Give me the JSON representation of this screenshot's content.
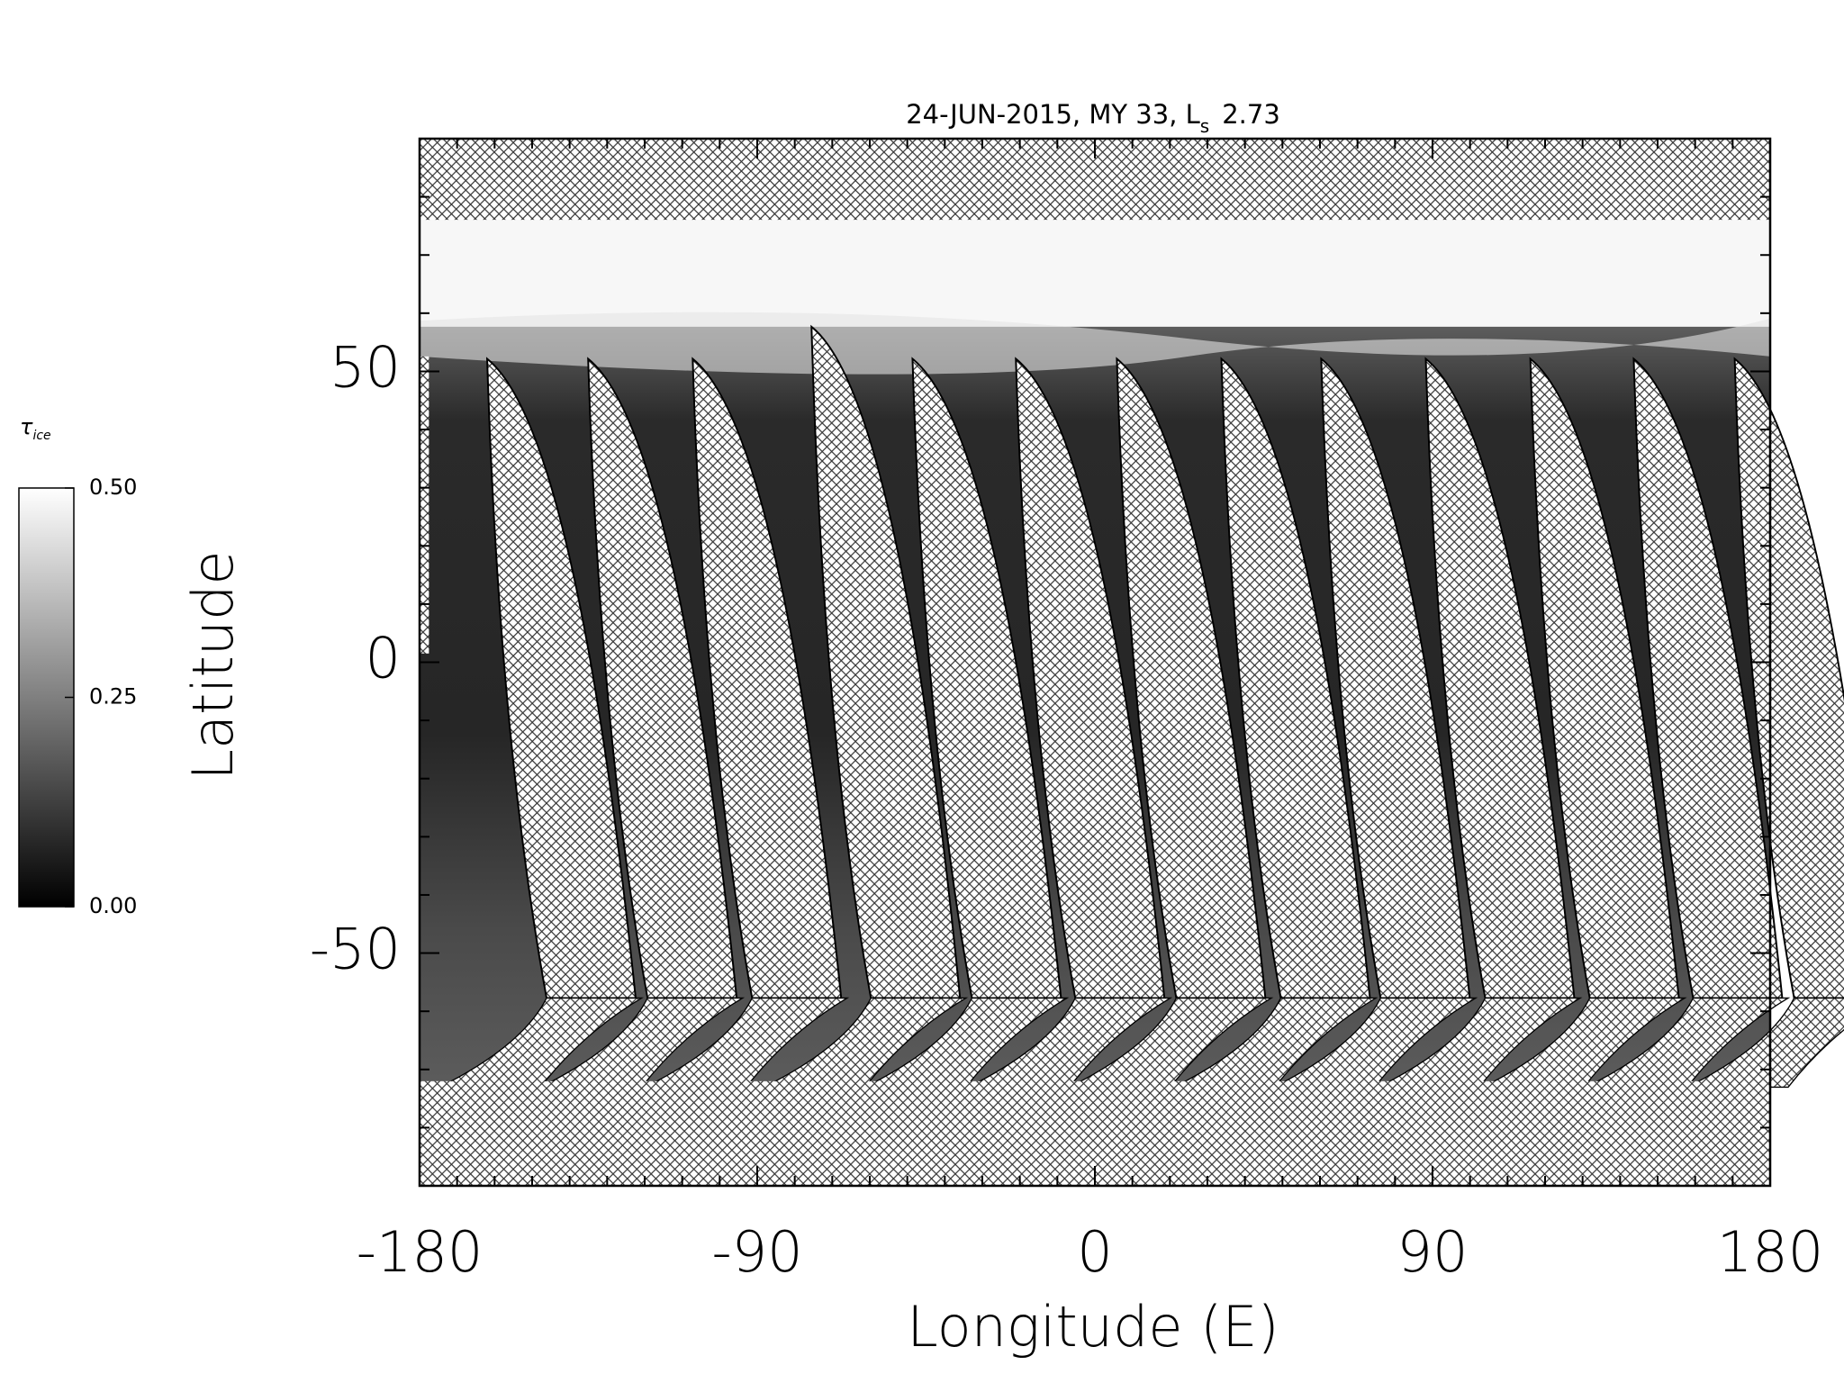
{
  "chart_data": {
    "type": "map",
    "title": "24-JUN-2015, MY 33,  L",
    "title_subscript": "s",
    "title_suffix": 2.73,
    "xlabel": "Longitude (E)",
    "ylabel": "Latitude",
    "xlim": [
      -180,
      180
    ],
    "xticks": [
      -180,
      -90,
      0,
      90,
      180
    ],
    "xminorticks": [
      -170,
      -160,
      -150,
      -140,
      -130,
      -120,
      -110,
      -100,
      -80,
      -70,
      -60,
      -50,
      -40,
      -30,
      -20,
      -10,
      10,
      20,
      30,
      40,
      50,
      60,
      70,
      80,
      100,
      110,
      120,
      130,
      140,
      150,
      160,
      170
    ],
    "ylim": [
      -90,
      90
    ],
    "yticks": [
      -50,
      0,
      50
    ],
    "yminorticks": [
      -80,
      -70,
      -60,
      -40,
      -30,
      -20,
      -10,
      10,
      20,
      30,
      40,
      60,
      70,
      80
    ],
    "colorbar": {
      "label": "τ",
      "label_subscript": "ice",
      "lim": [
        0,
        0.5
      ],
      "ticks": [
        {
          "value": 0,
          "label": "0.00"
        },
        {
          "value": 0.25,
          "label": "0.25"
        },
        {
          "value": 0.5,
          "label": "0.50"
        }
      ],
      "colors": [
        "#000000",
        "#ffffff"
      ]
    }
  }
}
